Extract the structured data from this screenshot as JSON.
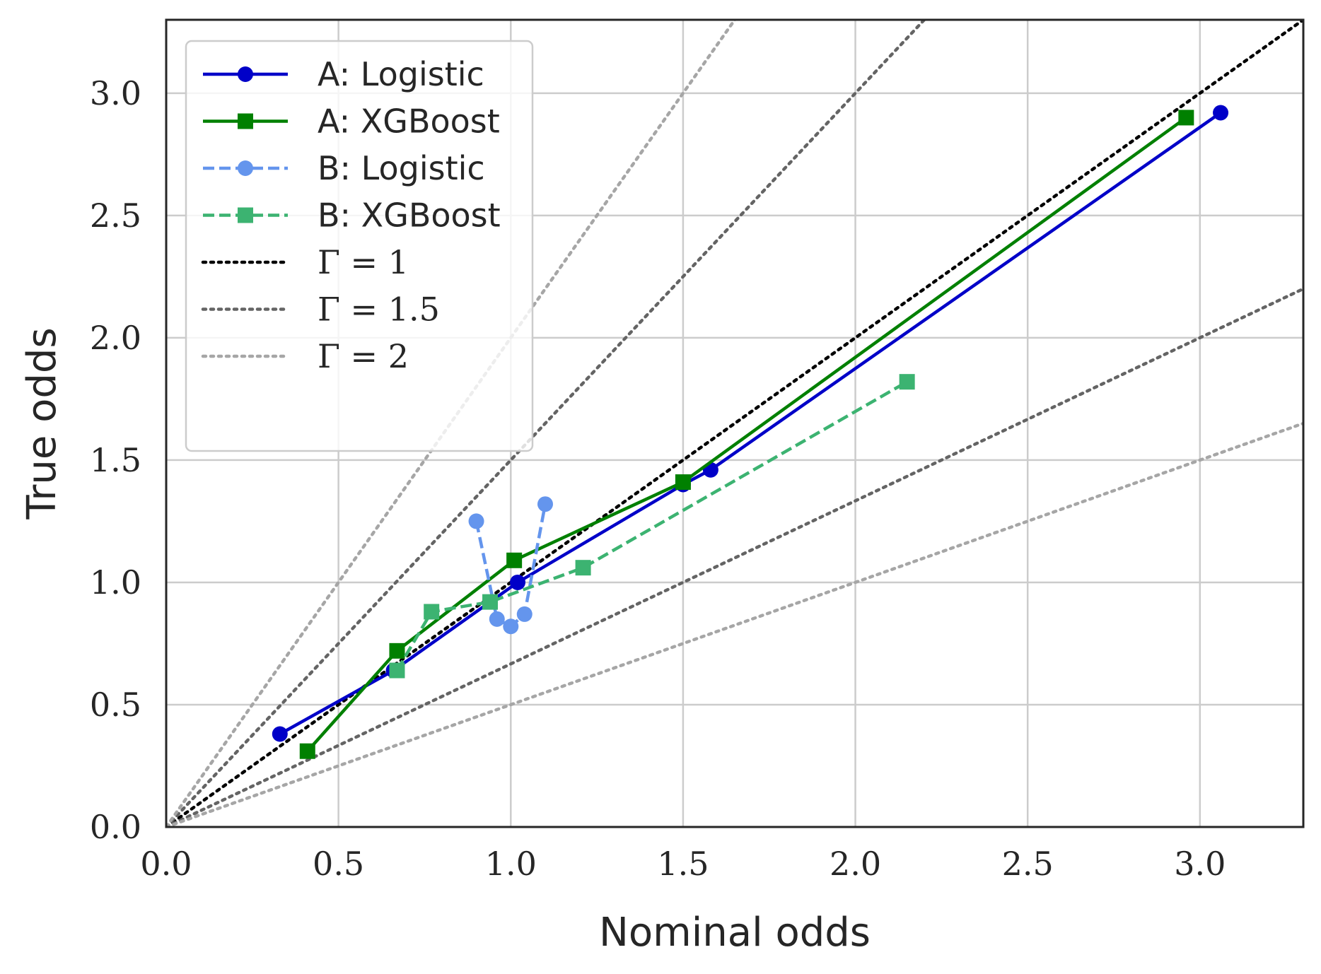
{
  "chart_data": {
    "type": "line",
    "title": "",
    "xlabel": "Nominal odds",
    "ylabel": "True odds",
    "xlim": [
      0,
      3.3
    ],
    "ylim": [
      0,
      3.3
    ],
    "xticks": [
      0.0,
      0.5,
      1.0,
      1.5,
      2.0,
      2.5,
      3.0
    ],
    "yticks": [
      0.0,
      0.5,
      1.0,
      1.5,
      2.0,
      2.5,
      3.0
    ],
    "xtick_labels": [
      "0.0",
      "0.5",
      "1.0",
      "1.5",
      "2.0",
      "2.5",
      "3.0"
    ],
    "ytick_labels": [
      "0.0",
      "0.5",
      "1.0",
      "1.5",
      "2.0",
      "2.5",
      "3.0"
    ],
    "grid": true,
    "legend_position": "top-left",
    "series": [
      {
        "name": "A: Logistic",
        "color": "#0000c8",
        "style": "solid",
        "marker": "circle",
        "x": [
          0.33,
          0.66,
          1.02,
          1.5,
          1.58,
          3.06
        ],
        "y": [
          0.38,
          0.64,
          1.0,
          1.4,
          1.46,
          2.92
        ]
      },
      {
        "name": "A: XGBoost",
        "color": "#008000",
        "style": "solid",
        "marker": "square",
        "x": [
          0.41,
          0.67,
          1.01,
          1.5,
          2.96
        ],
        "y": [
          0.31,
          0.72,
          1.09,
          1.41,
          2.9
        ]
      },
      {
        "name": "B: Logistic",
        "color": "#6495ed",
        "style": "dashed",
        "marker": "circle",
        "x": [
          0.9,
          0.96,
          1.0,
          1.04,
          1.1
        ],
        "y": [
          1.25,
          0.85,
          0.82,
          0.87,
          1.32
        ]
      },
      {
        "name": "B: XGBoost",
        "color": "#3cb371",
        "style": "dashed",
        "marker": "square",
        "x": [
          0.67,
          0.77,
          0.94,
          1.21,
          2.15
        ],
        "y": [
          0.64,
          0.88,
          0.92,
          1.06,
          1.82
        ]
      }
    ],
    "reference_lines": [
      {
        "name": "Γ = 1",
        "color": "#000000",
        "slopes": [
          1
        ]
      },
      {
        "name": "Γ = 1.5",
        "color": "#646464",
        "slopes": [
          1.5,
          0.6667
        ]
      },
      {
        "name": "Γ = 2",
        "color": "#a6a6a6",
        "slopes": [
          2,
          0.5
        ]
      }
    ]
  }
}
